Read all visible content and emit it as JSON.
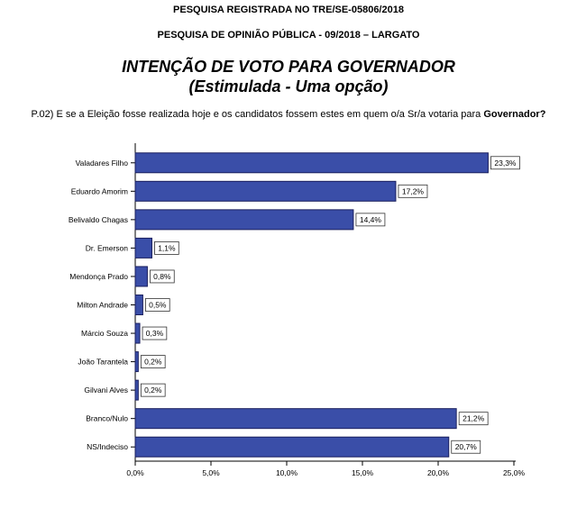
{
  "header": {
    "registration": "PESQUISA REGISTRADA NO TRE/SE-05806/2018",
    "survey": "PESQUISA DE OPINIÃO PÚBLICA - 09/2018 – LARGATO"
  },
  "title": {
    "line1": "INTENÇÃO DE VOTO PARA GOVERNADOR",
    "line2": "(Estimulada - Uma opção)"
  },
  "question": {
    "text": "P.02) E se a Eleição fosse realizada hoje e os candidatos fossem estes em quem o/a Sr/a votaria para ",
    "emphasis": "Governador?"
  },
  "chart_data": {
    "type": "bar",
    "orientation": "horizontal",
    "categories": [
      "Valadares Filho",
      "Eduardo Amorim",
      "Belivaldo Chagas",
      "Dr. Emerson",
      "Mendonça Prado",
      "Milton Andrade",
      "Márcio Souza",
      "João Tarantela",
      "Gilvani Alves",
      "Branco/Nulo",
      "NS/Indeciso"
    ],
    "values": [
      23.3,
      17.2,
      14.4,
      1.1,
      0.8,
      0.5,
      0.3,
      0.2,
      0.2,
      21.2,
      20.7
    ],
    "data_labels": [
      "23,3%",
      "17,2%",
      "14,4%",
      "1,1%",
      "0,8%",
      "0,5%",
      "0,3%",
      "0,2%",
      "0,2%",
      "21,2%",
      "20,7%"
    ],
    "xlim": [
      0,
      25
    ],
    "ticks": [
      0,
      5,
      10,
      15,
      20,
      25
    ],
    "tick_labels": [
      "0,0%",
      "5,0%",
      "10,0%",
      "15,0%",
      "20,0%",
      "25,0%"
    ],
    "bar_color": "#3a4ea8",
    "bar_edge_color": "#1a1f5e",
    "grid": false,
    "legend": "none"
  }
}
